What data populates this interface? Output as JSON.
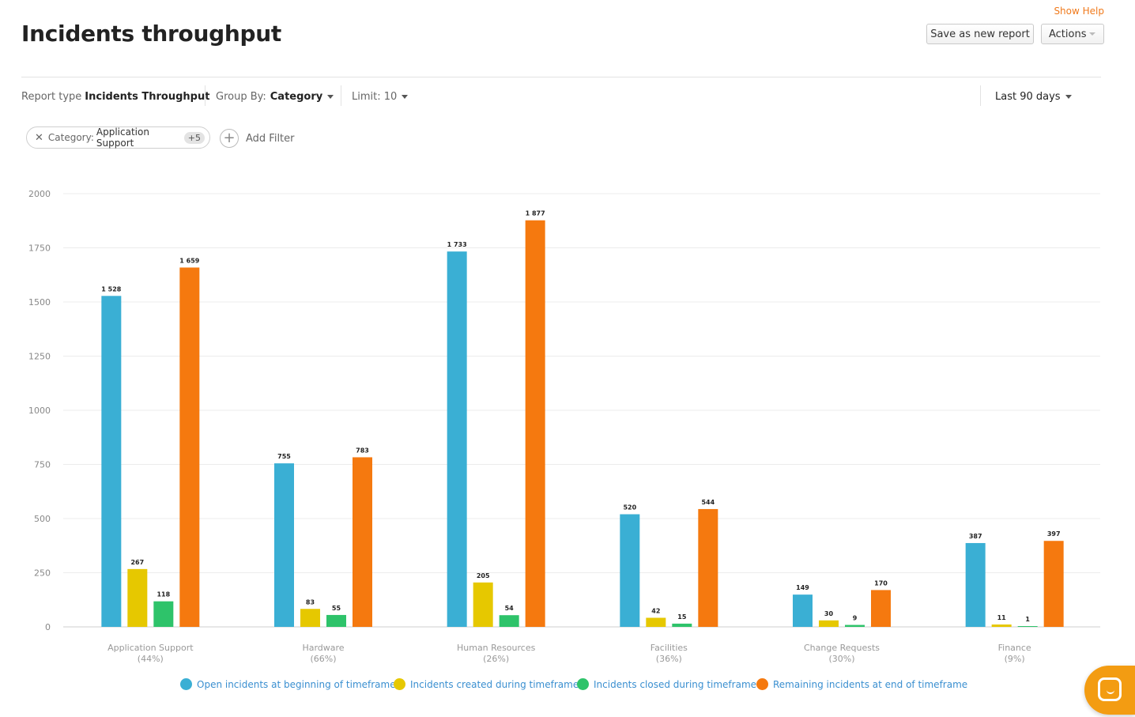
{
  "header": {
    "show_help": "Show Help",
    "title": "Incidents throughput",
    "save_button": "Save as new report",
    "actions_button": "Actions"
  },
  "toolbar": {
    "report_type_label": "Report type",
    "report_type_value": "Incidents Throughput",
    "group_by_label": "Group By:",
    "group_by_value": "Category",
    "limit_label": "Limit: 10",
    "date_range": "Last 90 days"
  },
  "filters": {
    "chip_label": "Category:",
    "chip_value": "Application Support",
    "chip_extra": "+5",
    "add_filter": "Add Filter"
  },
  "colors": {
    "open": "#3aafd4",
    "created": "#e6c800",
    "closed": "#2ec36a",
    "remaining": "#f5790f",
    "accent": "#f07a1c",
    "legend_text": "#3a8fd0"
  },
  "chart_data": {
    "type": "bar",
    "ylim": [
      0,
      2000
    ],
    "yticks": [
      0,
      250,
      500,
      750,
      1000,
      1250,
      1500,
      1750,
      2000
    ],
    "categories": [
      "Application Support",
      "Hardware",
      "Human Resources",
      "Facilities",
      "Change Requests",
      "Finance"
    ],
    "category_percents": [
      "(44%)",
      "(66%)",
      "(26%)",
      "(36%)",
      "(30%)",
      "(9%)"
    ],
    "series": [
      {
        "name": "Open incidents at beginning of timeframe",
        "color": "#3aafd4",
        "values": [
          1528,
          755,
          1733,
          520,
          149,
          387
        ],
        "labels": [
          "1 528",
          "755",
          "1 733",
          "520",
          "149",
          "387"
        ]
      },
      {
        "name": "Incidents created during timeframe",
        "color": "#e6c800",
        "values": [
          267,
          83,
          205,
          42,
          30,
          11
        ],
        "labels": [
          "267",
          "83",
          "205",
          "42",
          "30",
          "11"
        ]
      },
      {
        "name": "Incidents closed during timeframe",
        "color": "#2ec36a",
        "values": [
          118,
          55,
          54,
          15,
          9,
          1
        ],
        "labels": [
          "118",
          "55",
          "54",
          "15",
          "9",
          "1"
        ]
      },
      {
        "name": "Remaining incidents at end of timeframe",
        "color": "#f5790f",
        "values": [
          1659,
          783,
          1877,
          544,
          170,
          397
        ],
        "labels": [
          "1 659",
          "783",
          "1 877",
          "544",
          "170",
          "397"
        ]
      }
    ],
    "grid": true,
    "legend_position": "bottom"
  }
}
